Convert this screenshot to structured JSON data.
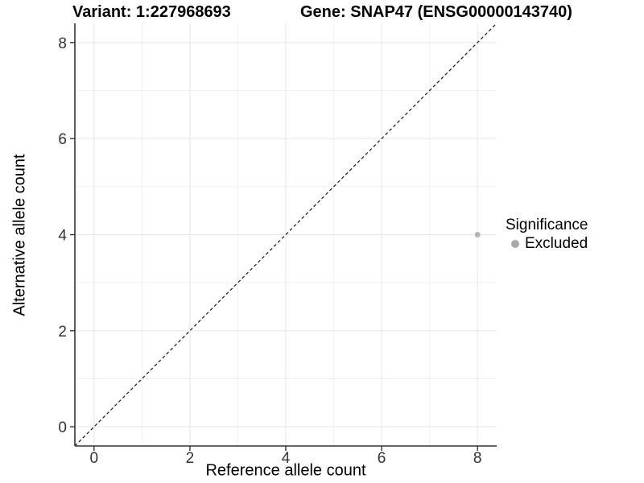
{
  "chart_data": {
    "type": "scatter",
    "title_left": "Variant: 1:227968693",
    "title_right": "Gene: SNAP47 (ENSG00000143740)",
    "xlabel": "Reference allele count",
    "ylabel": "Alternative allele count",
    "xlim": [
      -0.4,
      8.4
    ],
    "ylim": [
      -0.4,
      8.4
    ],
    "x_ticks": [
      0,
      2,
      4,
      6,
      8
    ],
    "y_ticks": [
      0,
      2,
      4,
      6,
      8
    ],
    "x_minor_gridlines": [
      1,
      3,
      5,
      7
    ],
    "y_minor_gridlines": [
      1,
      3,
      5,
      7
    ],
    "grid": "on",
    "reference_line": {
      "type": "identity",
      "from": -0.4,
      "to": 8.4,
      "style": "dashed",
      "color": "#1a1a1a"
    },
    "series": [
      {
        "name": "Excluded",
        "color": "#b5b5b5",
        "point_radius": 3.5,
        "points": [
          {
            "x": 8,
            "y": 4
          }
        ]
      }
    ],
    "legend": {
      "position": "right",
      "title": "Significance",
      "items": [
        {
          "label": "Excluded",
          "color": "#a9a9a9",
          "icon": "point-icon"
        }
      ]
    },
    "colors": {
      "background": "#ffffff",
      "grid_major": "#e6e6e6",
      "grid_minor": "#f0f0f0",
      "axis_line": "#333333",
      "tick_mark": "#333333",
      "tick_text": "#333333",
      "title_text": "#000000"
    }
  }
}
